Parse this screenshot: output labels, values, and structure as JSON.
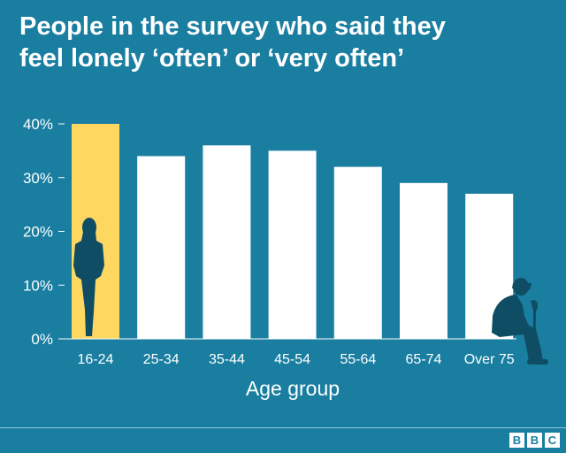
{
  "title_lines": [
    "People in the survey who said they",
    "feel lonely ‘often’ or ‘very often’"
  ],
  "logo_letters": [
    "B",
    "B",
    "C"
  ],
  "colors": {
    "background": "#1a7ea1",
    "bar": "#ffffff",
    "highlight_bar": "#fdd760",
    "silhouette": "#0e4d63",
    "text": "#ffffff"
  },
  "chart_data": {
    "type": "bar",
    "categories": [
      "16-24",
      "25-34",
      "35-44",
      "45-54",
      "55-64",
      "65-74",
      "Over 75"
    ],
    "values": [
      40,
      34,
      36,
      35,
      32,
      29,
      27
    ],
    "highlight_index": 0,
    "xlabel": "Age group",
    "ylabel": "",
    "ylim": [
      0,
      40
    ],
    "yticks": [
      0,
      10,
      20,
      30,
      40
    ],
    "ytick_labels": [
      "0%",
      "10%",
      "20%",
      "30%",
      "40%"
    ],
    "grid": false,
    "legend": "none"
  }
}
